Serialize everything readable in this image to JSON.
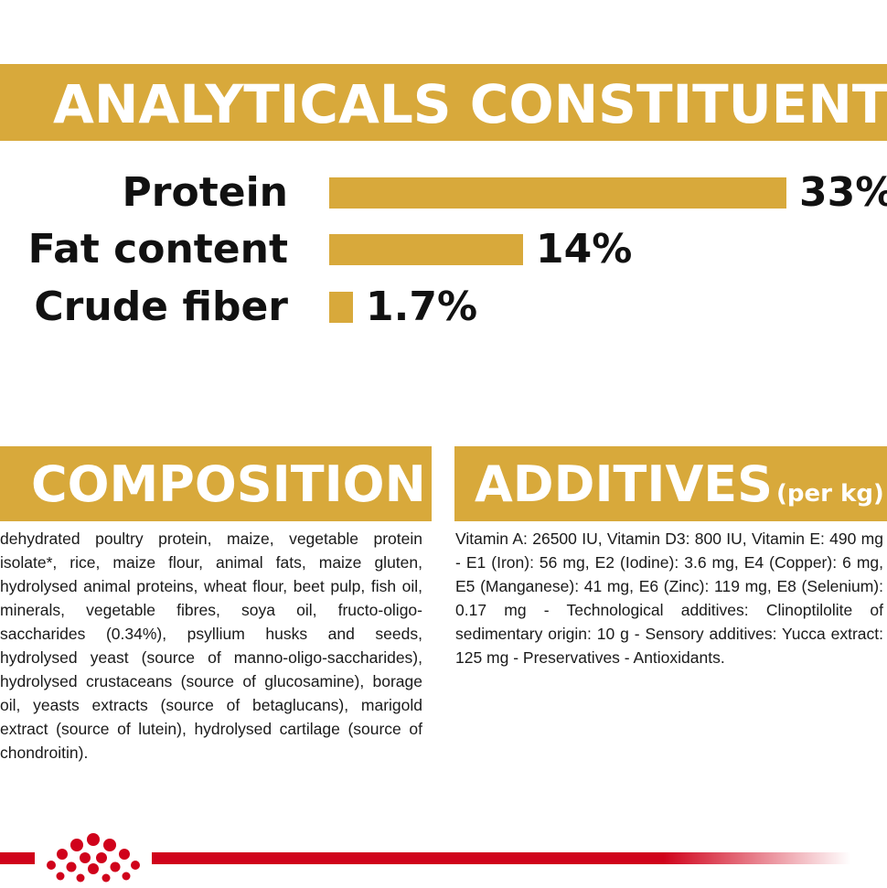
{
  "analytics": {
    "title": "ANALYTICALS CONSTITUENTS",
    "items": [
      {
        "label": "Protein",
        "value": 33,
        "value_text": "33%"
      },
      {
        "label": "Fat content",
        "value": 14,
        "value_text": "14%"
      },
      {
        "label": "Crude fiber",
        "value": 1.7,
        "value_text": "1.7%"
      }
    ]
  },
  "composition": {
    "title": "COMPOSITION",
    "text": "dehydrated poultry protein, maize, vegetable protein isolate*, rice, maize flour, animal fats, maize gluten, hydrolysed animal proteins, wheat flour, beet pulp, fish oil, minerals, vegetable fibres, soya oil, fructo-oligo-saccharides (0.34%), psyllium husks and seeds, hydrolysed yeast (source of manno-oligo-saccharides), hydrolysed crustaceans (source of glucosamine), borage oil, yeasts extracts (source of betaglucans), marigold extract (source of lutein), hydrolysed cartilage (source of chondroitin)."
  },
  "additives": {
    "title": "ADDITIVES",
    "subtitle": "(per kg)",
    "text": "Vitamin A: 26500 IU, Vitamin D3: 800 IU, Vitamin E: 490 mg - E1 (Iron): 56 mg, E2 (Iodine): 3.6 mg, E4 (Copper): 6 mg, E5 (Manganese): 41 mg, E6 (Zinc): 119 mg, E8 (Selenium): 0.17 mg - Technological additives: Clinoptilolite of sedimentary origin: 10 g - Sensory additives: Yucca extract: 125 mg - Preservatives - Antioxidants."
  },
  "colors": {
    "accent": "#d8a93b",
    "brand_red": "#d0021b"
  },
  "icons": {
    "logo": "crown-icon"
  }
}
